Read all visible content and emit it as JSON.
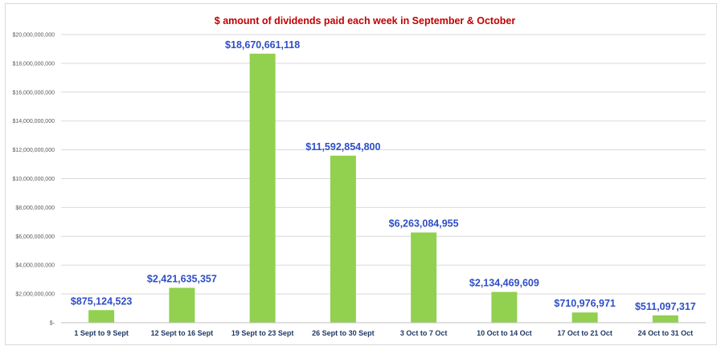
{
  "chart_data": {
    "type": "bar",
    "title": "$ amount of dividends paid each week in September & October",
    "categories": [
      "1 Sept to 9 Sept",
      "12 Sept to 16 Sept",
      "19 Sept to 23 Sept",
      "26  Sept to 30  Sept",
      "3 Oct to 7  Oct",
      "10 Oct to 14 Oct",
      "17 Oct to 21 Oct",
      "24 Oct to 31 Oct"
    ],
    "values": [
      875124523,
      2421635357,
      18670661118,
      11592854800,
      6263084955,
      2134469609,
      710976971,
      511097317
    ],
    "data_labels": [
      "$875,124,523",
      "$2,421,635,357",
      "$18,670,661,118",
      "$11,592,854,800",
      "$6,263,084,955",
      "$2,134,469,609",
      "$710,976,971",
      "$511,097,317"
    ],
    "yticks": [
      0,
      2000000000,
      4000000000,
      6000000000,
      8000000000,
      10000000000,
      12000000000,
      14000000000,
      16000000000,
      18000000000,
      20000000000
    ],
    "ytick_labels": [
      "$-",
      "$2,000,000,000",
      "$4,000,000,000",
      "$6,000,000,000",
      "$8,000,000,000",
      "$10,000,000,000",
      "$12,000,000,000",
      "$14,000,000,000",
      "$16,000,000,000",
      "$18,000,000,000",
      "$20,000,000,000"
    ],
    "ylim": [
      0,
      20000000000
    ],
    "xlabel": "",
    "ylabel": "",
    "grid": true,
    "legend": "none",
    "colors": {
      "bar": "#92d050",
      "title": "#c00000",
      "data_label": "#2e4ec7",
      "x_tick": "#1f3864",
      "gridline": "#d9d9d9",
      "axis": "#bfbfbf"
    }
  }
}
